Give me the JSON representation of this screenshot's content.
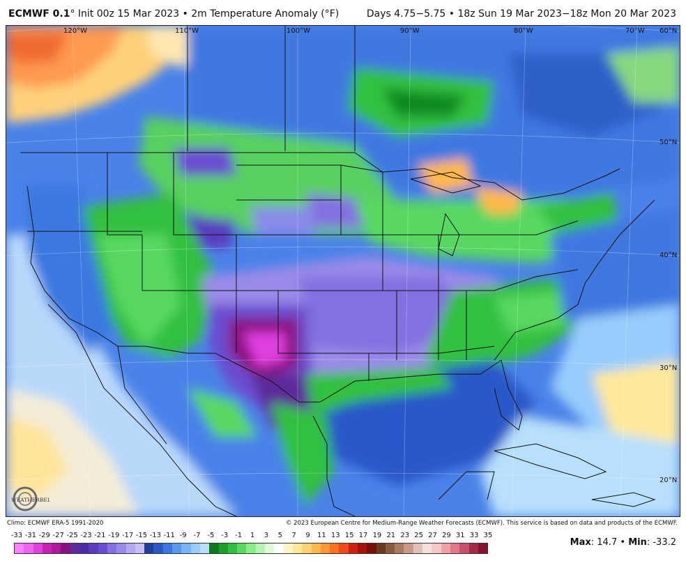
{
  "header": {
    "model": "ECMWF 0.1",
    "degree": "°",
    "init": " Init 00z 15 Mar 2023 • 2m Temperature Anomaly (°F)",
    "valid": "Days 4.75−5.75 • 18z Sun 19 Mar 2023−18z Mon 20 Mar 2023"
  },
  "map": {
    "lon_labels": [
      "120°W",
      "110°W",
      "100°W",
      "90°W",
      "80°W",
      "70°W"
    ],
    "lat_labels": [
      "60°N",
      "50°N",
      "40°N",
      "30°N",
      "20°N"
    ],
    "logo_text": "WEATHERBELL"
  },
  "footer": {
    "climo": "Climo: ECMWF ERA-5 1991-2020",
    "copyright": "© 2023 European Centre for Medium-Range Weather Forecasts (ECMWF). This service is based on data and products of the ECMWF."
  },
  "scale": {
    "labels": [
      "-33",
      "-31",
      "-29",
      "-27",
      "-25",
      "-23",
      "-21",
      "-19",
      "-17",
      "-15",
      "-13",
      "-11",
      "-9",
      "-7",
      "-5",
      "-3",
      "-1",
      "1",
      "3",
      "5",
      "7",
      "9",
      "11",
      "13",
      "15",
      "17",
      "19",
      "21",
      "23",
      "25",
      "27",
      "29",
      "31",
      "33",
      "35"
    ],
    "colors": [
      "#ff80ff",
      "#f062f0",
      "#e040e0",
      "#c81fb4",
      "#b0189c",
      "#8a1080",
      "#5c2a9a",
      "#4b2ca8",
      "#5a3cc0",
      "#6b4dd0",
      "#8470e0",
      "#9a8ae8",
      "#b4a8f0",
      "#c8c0f4",
      "#1f3fa0",
      "#2a58c8",
      "#3a78e0",
      "#5a98f0",
      "#7ab4f8",
      "#98ccfc",
      "#b8e0fc",
      "#0a7a1a",
      "#1aa02a",
      "#30c040",
      "#58d860",
      "#88ec88",
      "#b8f4b0",
      "#e0fad8",
      "#ffffff",
      "#fff4c8",
      "#ffe89a",
      "#ffd470",
      "#ffb848",
      "#ff9830",
      "#ff7020",
      "#f04a18",
      "#d02010",
      "#a81008",
      "#781008",
      "#6a3a20",
      "#8a5a40",
      "#aa7a60",
      "#c89a88",
      "#e0c0b8",
      "#f4e0dc",
      "#f8c8c8",
      "#f0a0a8",
      "#e07888",
      "#c8506a",
      "#a82848",
      "#8a1030"
    ]
  },
  "stats": {
    "max_label": "Max",
    "max_value": ": 14.7",
    "sep": " • ",
    "min_label": "Min",
    "min_value": ": -33.2"
  }
}
